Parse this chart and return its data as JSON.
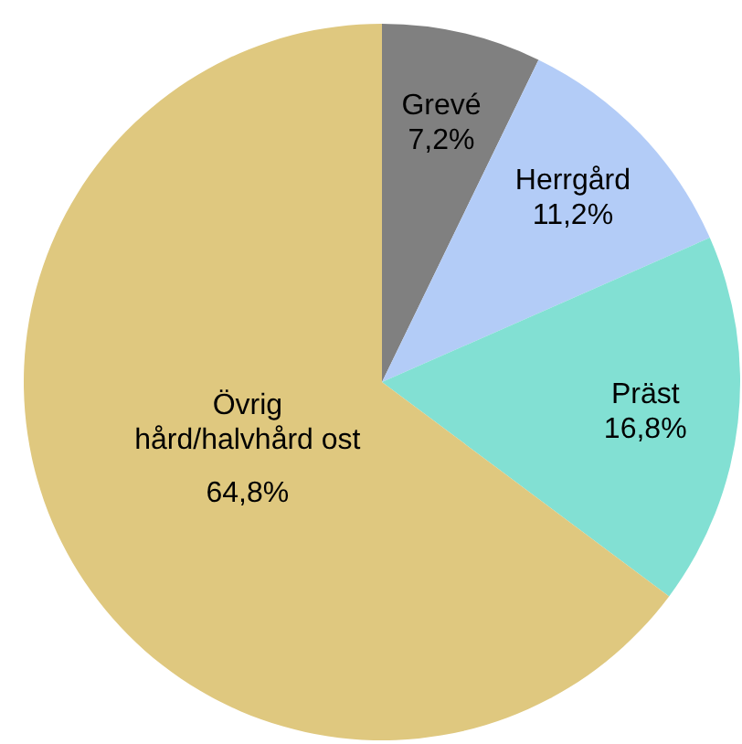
{
  "chart_data": {
    "type": "pie",
    "categories": [
      "Grevé",
      "Herrgård",
      "Präst",
      "Övrig hård/halvhård ost"
    ],
    "values": [
      7.2,
      11.2,
      16.8,
      64.8
    ],
    "value_labels": [
      "7,2%",
      "11,2%",
      "16,8%",
      "64,8%"
    ],
    "colors": [
      "#808080",
      "#b3ccf7",
      "#82e0d3",
      "#dfc87f"
    ]
  }
}
